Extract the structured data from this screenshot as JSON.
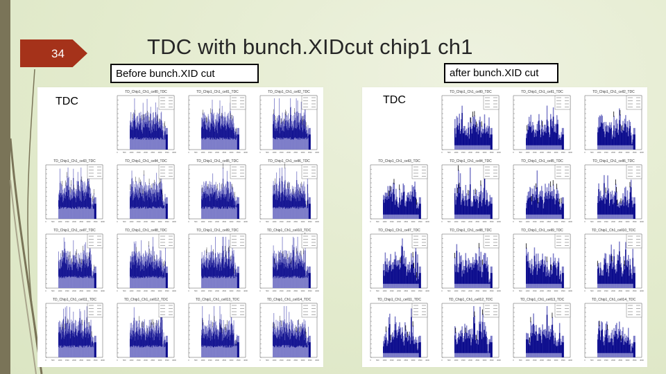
{
  "slide": {
    "number": "34",
    "title": "TDC with bunch.XIDcut chip1 ch1",
    "accent_color": "#a5321a",
    "sidebar_color": "#7a7458"
  },
  "labels": {
    "before": "Before bunch.XID cut",
    "after": "after bunch.XID cut"
  },
  "panels": {
    "before": {
      "row_label": "TDC",
      "plots": [
        {
          "title": "TD_Chip1_Ch1_cell0_TDC"
        },
        {
          "title": "TD_Chip1_Ch1_cell1_TDC"
        },
        {
          "title": "TD_Chip1_Ch1_cell2_TDC"
        },
        {
          "title": "TD_Chip1_Ch1_cell3_TDC"
        },
        {
          "title": "TD_Chip1_Ch1_cell4_TDC"
        },
        {
          "title": "TD_Chip1_Ch1_cell5_TDC"
        },
        {
          "title": "TD_Chip1_Ch1_cell6_TDC"
        },
        {
          "title": "TD_Chip1_Ch1_cell7_TDC"
        },
        {
          "title": "TD_Chip1_Ch1_cell8_TDC"
        },
        {
          "title": "TD_Chip1_Ch1_cell9_TDC"
        },
        {
          "title": "TD_Chip1_Ch1_cell10_TDC"
        },
        {
          "title": "TD_Chip1_Ch1_cell11_TDC"
        },
        {
          "title": "TD_Chip1_Ch1_cell12_TDC"
        },
        {
          "title": "TD_Chip1_Ch1_cell13_TDC"
        },
        {
          "title": "TD_Chip1_Ch1_cell14_TDC"
        },
        {
          "title": "TD_Chip1_Ch1_cell15_TDC"
        }
      ],
      "first_plot_offset": 1
    },
    "after": {
      "row_label": "TDC",
      "plots": [
        {
          "title": "TD_Chip1_Ch1_cell0_TDC"
        },
        {
          "title": "TD_Chip1_Ch1_cell1_TDC"
        },
        {
          "title": "TD_Chip1_Ch1_cell2_TDC"
        },
        {
          "title": "TD_Chip1_Ch1_cell3_TDC"
        },
        {
          "title": "TD_Chip1_Ch1_cell4_TDC"
        },
        {
          "title": "TD_Chip1_Ch1_cell5_TDC"
        },
        {
          "title": "TD_Chip1_Ch1_cell6_TDC"
        },
        {
          "title": "TD_Chip1_Ch1_cell7_TDC"
        },
        {
          "title": "TD_Chip1_Ch1_cell8_TDC"
        },
        {
          "title": "TD_Chip1_Ch1_cell9_TDC"
        },
        {
          "title": "TD_Chip1_Ch1_cell10_TDC"
        },
        {
          "title": "TD_Chip1_Ch1_cell11_TDC"
        },
        {
          "title": "TD_Chip1_Ch1_cell12_TDC"
        },
        {
          "title": "TD_Chip1_Ch1_cell13_TDC"
        },
        {
          "title": "TD_Chip1_Ch1_cell14_TDC"
        },
        {
          "title": "TD_Chip1_Ch1_cell15_TDC"
        }
      ],
      "first_plot_offset": 1
    }
  },
  "histogram_style": {
    "fill_dark": "#0a0a8c",
    "fill_light": "#7b7bc8",
    "x_ticks": [
      "0",
      "500",
      "1000",
      "1500",
      "2000",
      "2500",
      "3000",
      "3500",
      "4000"
    ],
    "data_range_fraction": [
      0.22,
      0.9
    ],
    "stats_box_rows": 4
  }
}
